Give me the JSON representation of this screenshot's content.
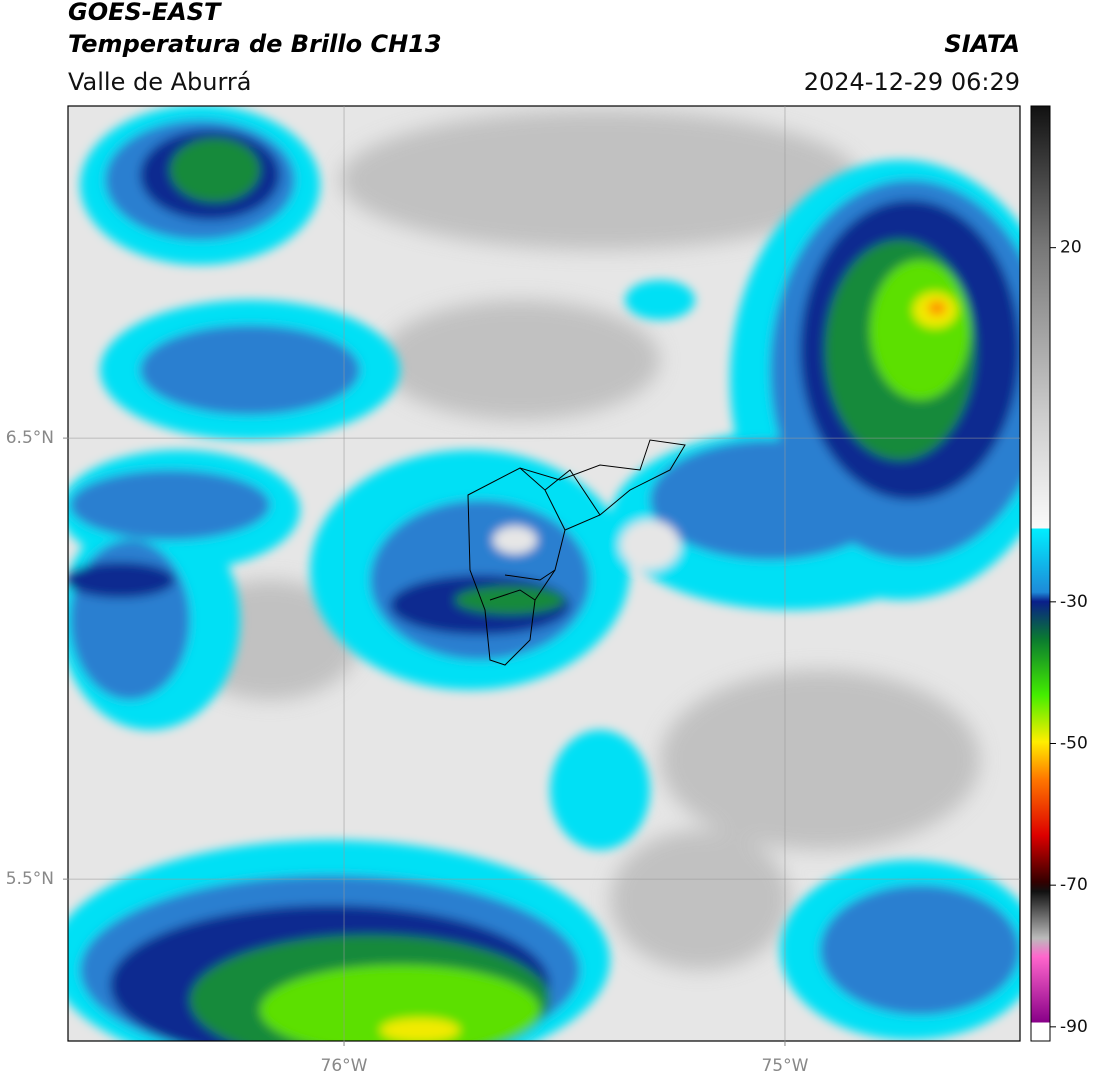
{
  "header": {
    "title": "GOES-EAST",
    "subtitle": "Temperatura de Brillo CH13",
    "region": "Valle de Aburrá",
    "source": "SIATA",
    "timestamp": "2024-12-29 06:29"
  },
  "map": {
    "lonlim": [
      -76.626,
      -74.467
    ],
    "latlim": [
      5.133,
      7.253
    ],
    "lon_ticks": [
      {
        "value": -76,
        "label": "76°W"
      },
      {
        "value": -75,
        "label": "75°W"
      }
    ],
    "lat_ticks": [
      {
        "value": 6.5,
        "label": "6.5°N"
      },
      {
        "value": 5.5,
        "label": "5.5°N"
      }
    ],
    "grid": true
  },
  "colorbar": {
    "lim": [
      -92,
      40
    ],
    "ticks": [
      20,
      -30,
      -50,
      -70,
      -90
    ]
  }
}
